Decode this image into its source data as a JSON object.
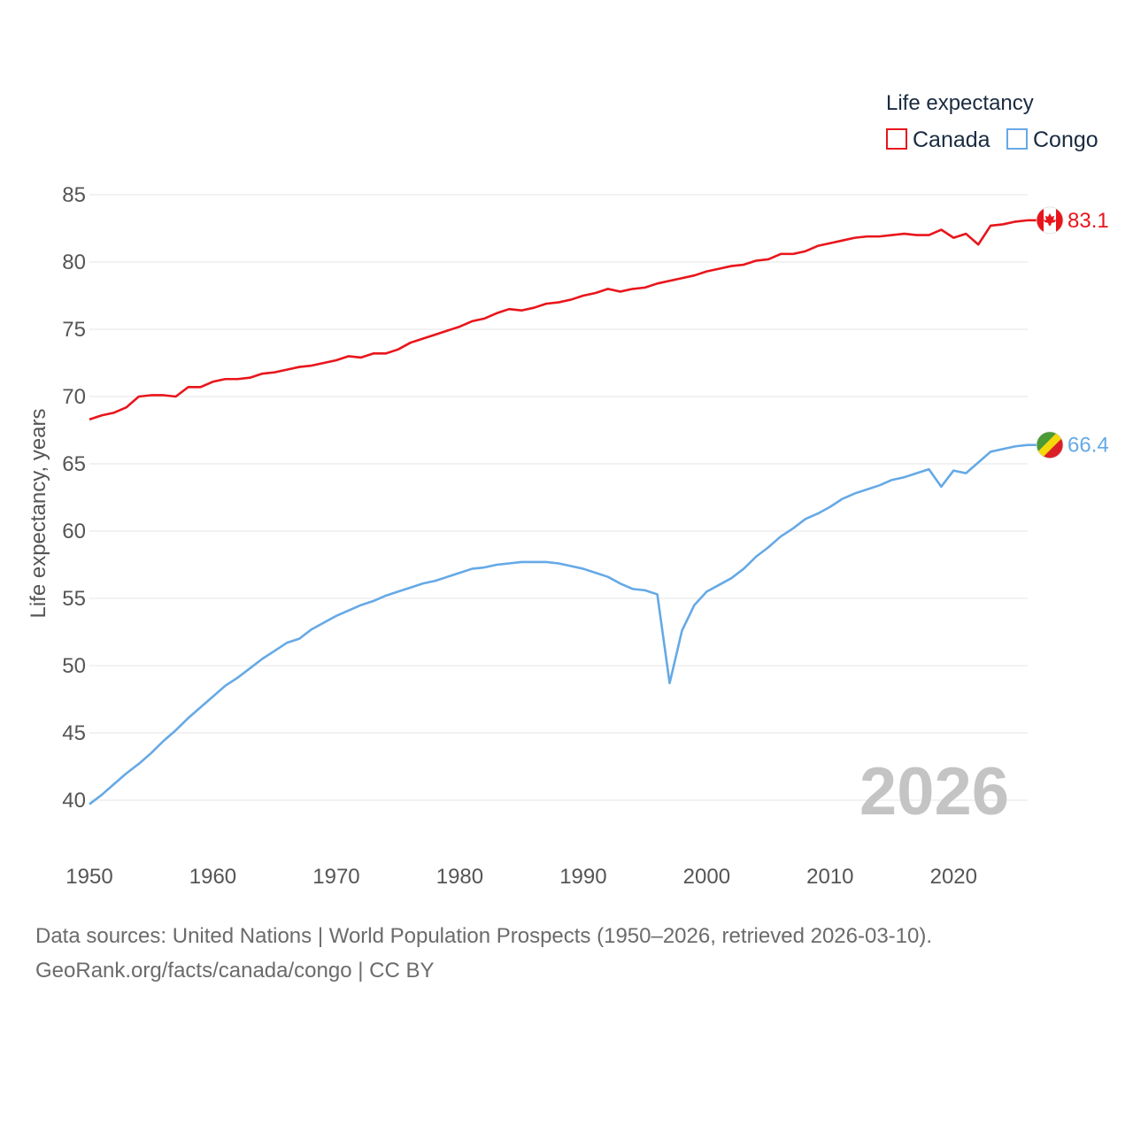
{
  "chart_data": {
    "type": "line",
    "ylabel": "Life expectancy, years",
    "xlabel": "",
    "xlim": [
      1950,
      2026
    ],
    "ylim": [
      40,
      85
    ],
    "x_ticks": [
      1950,
      1960,
      1970,
      1980,
      1990,
      2000,
      2010,
      2020
    ],
    "y_ticks": [
      40,
      45,
      50,
      55,
      60,
      65,
      70,
      75,
      80,
      85
    ],
    "grid": true,
    "legend_title": "Life expectancy",
    "legend_position": "top-right",
    "current_year": "2026",
    "x": [
      1950,
      1951,
      1952,
      1953,
      1954,
      1955,
      1956,
      1957,
      1958,
      1959,
      1960,
      1961,
      1962,
      1963,
      1964,
      1965,
      1966,
      1967,
      1968,
      1969,
      1970,
      1971,
      1972,
      1973,
      1974,
      1975,
      1976,
      1977,
      1978,
      1979,
      1980,
      1981,
      1982,
      1983,
      1984,
      1985,
      1986,
      1987,
      1988,
      1989,
      1990,
      1991,
      1992,
      1993,
      1994,
      1995,
      1996,
      1997,
      1998,
      1999,
      2000,
      2001,
      2002,
      2003,
      2004,
      2005,
      2006,
      2007,
      2008,
      2009,
      2010,
      2011,
      2012,
      2013,
      2014,
      2015,
      2016,
      2017,
      2018,
      2019,
      2020,
      2021,
      2022,
      2023,
      2024,
      2025,
      2026
    ],
    "series": [
      {
        "name": "Canada",
        "color": "#e8151b",
        "flag": "canada-flag",
        "end_label": "83.1",
        "values": [
          68.3,
          68.6,
          68.8,
          69.2,
          70.0,
          70.1,
          70.1,
          70.0,
          70.7,
          70.7,
          71.1,
          71.3,
          71.3,
          71.4,
          71.7,
          71.8,
          72.0,
          72.2,
          72.3,
          72.5,
          72.7,
          73.0,
          72.9,
          73.2,
          73.2,
          73.5,
          74.0,
          74.3,
          74.6,
          74.9,
          75.2,
          75.6,
          75.8,
          76.2,
          76.5,
          76.4,
          76.6,
          76.9,
          77.0,
          77.2,
          77.5,
          77.7,
          78.0,
          77.8,
          78.0,
          78.1,
          78.4,
          78.6,
          78.8,
          79.0,
          79.3,
          79.5,
          79.7,
          79.8,
          80.1,
          80.2,
          80.6,
          80.6,
          80.8,
          81.2,
          81.4,
          81.6,
          81.8,
          81.9,
          81.9,
          82.0,
          82.1,
          82.0,
          82.0,
          82.4,
          81.8,
          82.1,
          81.3,
          82.7,
          82.8,
          83.0,
          83.1
        ]
      },
      {
        "name": "Congo",
        "color": "#65a9e6",
        "flag": "congo-flag",
        "end_label": "66.4",
        "values": [
          39.7,
          40.4,
          41.2,
          42.0,
          42.7,
          43.5,
          44.4,
          45.2,
          46.1,
          46.9,
          47.7,
          48.5,
          49.1,
          49.8,
          50.5,
          51.1,
          51.7,
          52.0,
          52.7,
          53.2,
          53.7,
          54.1,
          54.5,
          54.8,
          55.2,
          55.5,
          55.8,
          56.1,
          56.3,
          56.6,
          56.9,
          57.2,
          57.3,
          57.5,
          57.6,
          57.7,
          57.7,
          57.7,
          57.6,
          57.4,
          57.2,
          56.9,
          56.6,
          56.1,
          55.7,
          55.6,
          55.3,
          48.7,
          52.6,
          54.5,
          55.5,
          56.0,
          56.5,
          57.2,
          58.1,
          58.8,
          59.6,
          60.2,
          60.9,
          61.3,
          61.8,
          62.4,
          62.8,
          63.1,
          63.4,
          63.8,
          64.0,
          64.3,
          64.6,
          63.3,
          64.5,
          64.3,
          65.1,
          65.9,
          66.1,
          66.3,
          66.4
        ]
      }
    ]
  },
  "footer": {
    "line1": "Data sources: United Nations | World Population Prospects (1950–2026, retrieved 2026-03-10).",
    "line2": "GeoRank.org/facts/canada/congo | CC BY"
  }
}
